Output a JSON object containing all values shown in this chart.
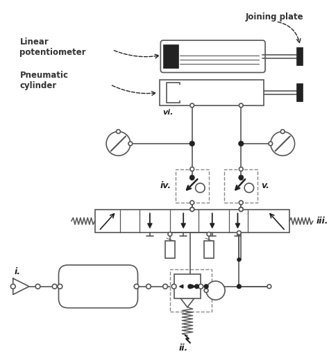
{
  "bg_color": "#ffffff",
  "lc": "#555555",
  "dark": "#222222",
  "labels": {
    "linear_pot": "Linear\npotentiometer",
    "pneumatic_cyl": "Pneumatic\ncylinder",
    "joining_plate": "Joining plate",
    "i": "i.",
    "ii": "ii.",
    "iii": "iii.",
    "iv": "iv.",
    "v": "v.",
    "vi": "vi."
  },
  "figsize": [
    4.74,
    5.23
  ],
  "dpi": 100
}
